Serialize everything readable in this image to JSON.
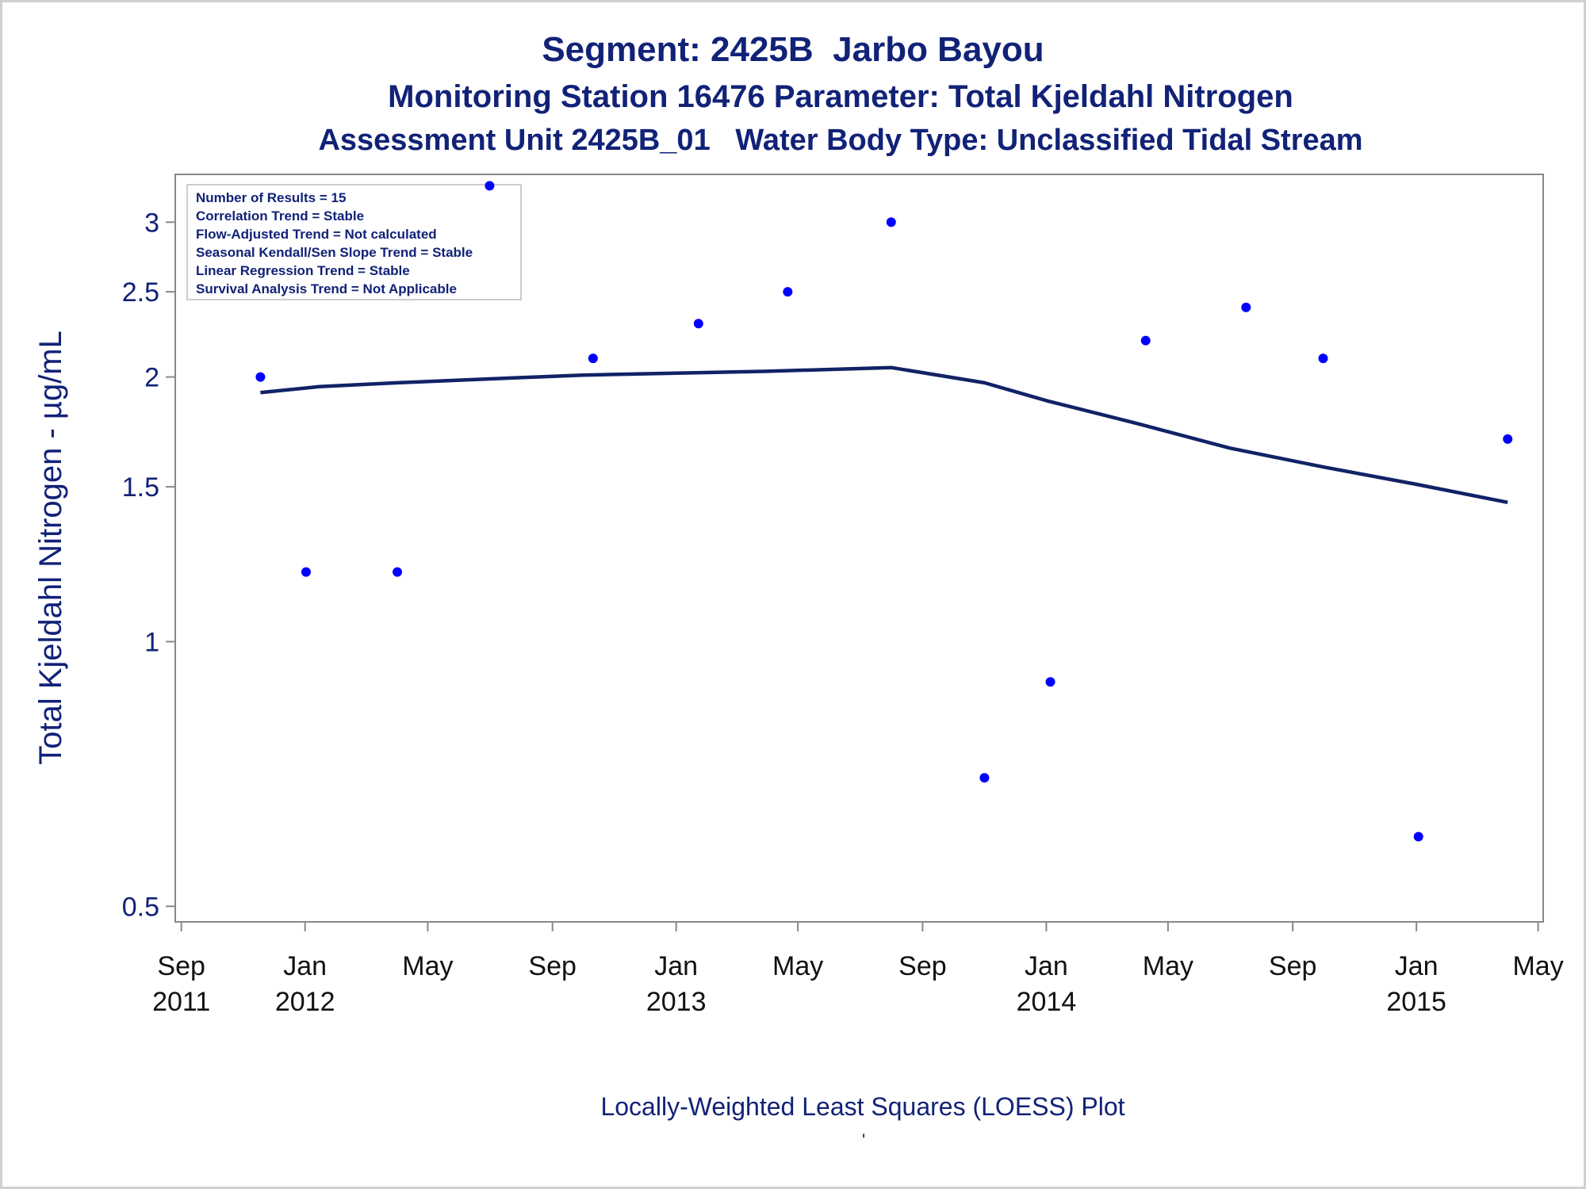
{
  "titles": {
    "line1": "Segment: 2425B  Jarbo Bayou",
    "line2": "Monitoring Station 16476 Parameter: Total Kjeldahl Nitrogen",
    "line3": "Assessment Unit 2425B_01   Water Body Type: Unclassified Tidal Stream"
  },
  "footnote": "Locally-Weighted Least Squares (LOESS) Plot",
  "footnote_mark": "'",
  "stats_box": [
    "Number of Results = 15",
    "Correlation Trend = Stable",
    "Flow-Adjusted Trend = Not calculated",
    "Seasonal Kendall/Sen Slope Trend = Stable",
    "Linear Regression Trend = Stable",
    "Survival Analysis Trend = Not Applicable"
  ],
  "colors": {
    "text": "#112277",
    "points": "#0000ff",
    "loess_line": "#112266",
    "axis": "#888888"
  },
  "chart_data": {
    "type": "scatter",
    "title": "Segment: 2425B  Jarbo Bayou",
    "xlabel": "",
    "ylabel": "Total Kjeldahl Nitrogen -  µg/mL",
    "y_scale": "log",
    "ylim": [
      0.48,
      3.4
    ],
    "xlim": [
      "2011-08-26",
      "2015-05-06"
    ],
    "yticks": [
      {
        "value": 0.5,
        "label": "0.5"
      },
      {
        "value": 1,
        "label": "1"
      },
      {
        "value": 1.5,
        "label": "1.5"
      },
      {
        "value": 2,
        "label": "2"
      },
      {
        "value": 2.5,
        "label": "2.5"
      },
      {
        "value": 3,
        "label": "3"
      }
    ],
    "xticks": [
      {
        "date": "2011-09-01",
        "month": "Sep",
        "year": "2011"
      },
      {
        "date": "2012-01-01",
        "month": "Jan",
        "year": "2012"
      },
      {
        "date": "2012-05-01",
        "month": "May",
        "year": ""
      },
      {
        "date": "2012-09-01",
        "month": "Sep",
        "year": ""
      },
      {
        "date": "2013-01-01",
        "month": "Jan",
        "year": "2013"
      },
      {
        "date": "2013-05-01",
        "month": "May",
        "year": ""
      },
      {
        "date": "2013-09-01",
        "month": "Sep",
        "year": ""
      },
      {
        "date": "2014-01-01",
        "month": "Jan",
        "year": "2014"
      },
      {
        "date": "2014-05-01",
        "month": "May",
        "year": ""
      },
      {
        "date": "2014-09-01",
        "month": "Sep",
        "year": ""
      },
      {
        "date": "2015-01-01",
        "month": "Jan",
        "year": "2015"
      },
      {
        "date": "2015-05-01",
        "month": "May",
        "year": ""
      }
    ],
    "series": [
      {
        "type": "scatter",
        "points": [
          {
            "x": "2011-11-18",
            "y": 2.0
          },
          {
            "x": "2012-01-02",
            "y": 1.2
          },
          {
            "x": "2012-04-01",
            "y": 1.2
          },
          {
            "x": "2012-07-01",
            "y": 3.3
          },
          {
            "x": "2012-10-11",
            "y": 2.1
          },
          {
            "x": "2013-01-23",
            "y": 2.3
          },
          {
            "x": "2013-04-21",
            "y": 2.5
          },
          {
            "x": "2013-08-01",
            "y": 3.0
          },
          {
            "x": "2013-11-01",
            "y": 0.7
          },
          {
            "x": "2014-01-05",
            "y": 0.9
          },
          {
            "x": "2014-04-09",
            "y": 2.2
          },
          {
            "x": "2014-07-17",
            "y": 2.4
          },
          {
            "x": "2014-10-01",
            "y": 2.1
          },
          {
            "x": "2015-01-03",
            "y": 0.6
          },
          {
            "x": "2015-04-01",
            "y": 1.7
          }
        ]
      },
      {
        "type": "line",
        "points": [
          {
            "x": "2011-11-18",
            "y": 1.92
          },
          {
            "x": "2012-01-15",
            "y": 1.95
          },
          {
            "x": "2012-04-01",
            "y": 1.97
          },
          {
            "x": "2012-07-01",
            "y": 1.99
          },
          {
            "x": "2012-10-01",
            "y": 2.01
          },
          {
            "x": "2013-01-01",
            "y": 2.02
          },
          {
            "x": "2013-04-01",
            "y": 2.03
          },
          {
            "x": "2013-08-01",
            "y": 2.05
          },
          {
            "x": "2013-11-01",
            "y": 1.97
          },
          {
            "x": "2014-01-01",
            "y": 1.88
          },
          {
            "x": "2014-04-01",
            "y": 1.77
          },
          {
            "x": "2014-07-01",
            "y": 1.66
          },
          {
            "x": "2014-10-01",
            "y": 1.58
          },
          {
            "x": "2015-01-01",
            "y": 1.51
          },
          {
            "x": "2015-04-01",
            "y": 1.44
          }
        ]
      }
    ],
    "legend": "none",
    "grid": false
  }
}
